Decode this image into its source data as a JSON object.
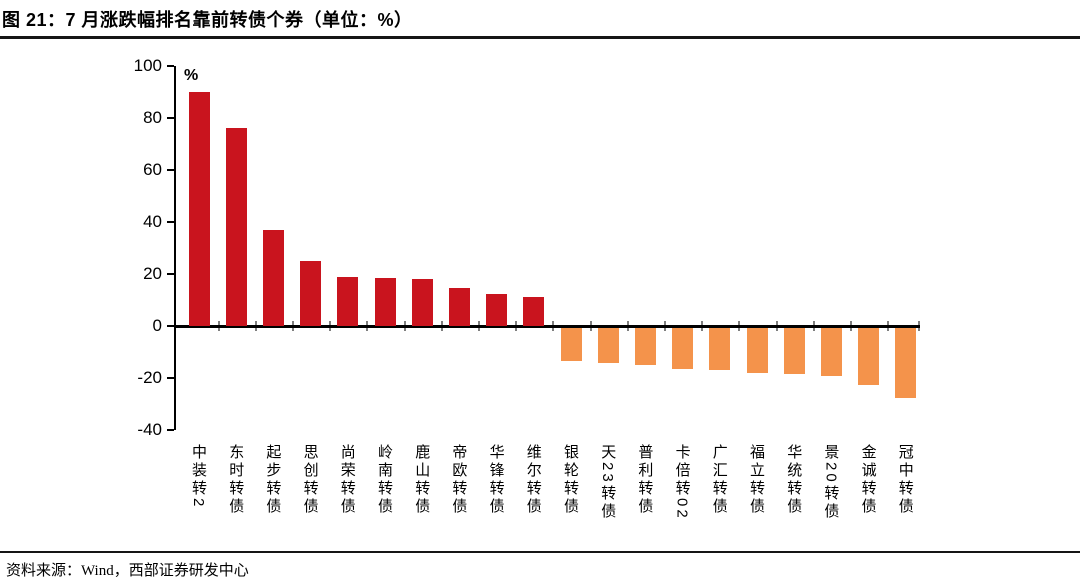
{
  "figure": {
    "title": "图 21：7 月涨跌幅排名靠前转债个券（单位：%）",
    "source": "资料来源：Wind，西部证券研发中心"
  },
  "colors": {
    "positive_bar": "#C9141E",
    "negative_bar": "#F4934B",
    "axis": "#000000",
    "category_tick": "#7F7F7F",
    "rule": "#151515"
  },
  "chart_data": {
    "type": "bar",
    "title": "7 月涨跌幅排名靠前转债个券",
    "unit_label": "%",
    "xlabel": "",
    "ylabel": "%",
    "ylim": [
      -40,
      100
    ],
    "y_ticks": [
      100,
      80,
      60,
      40,
      20,
      0,
      -20,
      -40
    ],
    "grid": false,
    "legend": "none",
    "categories": [
      "中装转2",
      "东时转债",
      "起步转债",
      "思创转债",
      "尚荣转债",
      "岭南转债",
      "鹿山转债",
      "帝欧转债",
      "华锋转债",
      "维尔转债",
      "银轮转债",
      "天23转债",
      "普利转债",
      "卡倍转02",
      "广汇转债",
      "福立转债",
      "华统转债",
      "景20转债",
      "金诚转债",
      "冠中转债"
    ],
    "values": [
      90,
      76,
      37,
      25,
      19,
      18.5,
      18,
      14.5,
      12.5,
      11,
      -13,
      -13.5,
      -14.5,
      -16,
      -16.5,
      -17.5,
      -18,
      -18.5,
      -22,
      -27
    ],
    "series_note": "positive values red, negative values orange"
  }
}
